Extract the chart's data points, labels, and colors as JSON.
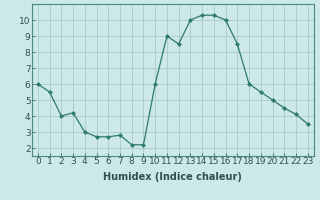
{
  "x": [
    0,
    1,
    2,
    3,
    4,
    5,
    6,
    7,
    8,
    9,
    10,
    11,
    12,
    13,
    14,
    15,
    16,
    17,
    18,
    19,
    20,
    21,
    22,
    23
  ],
  "y": [
    6.0,
    5.5,
    4.0,
    4.2,
    3.0,
    2.7,
    2.7,
    2.8,
    2.2,
    2.2,
    6.0,
    9.0,
    8.5,
    10.0,
    10.3,
    10.3,
    10.0,
    8.5,
    6.0,
    5.5,
    5.0,
    4.5,
    4.1,
    3.5
  ],
  "line_color": "#2d7a6e",
  "marker_color": "#2d7a6e",
  "bg_color": "#cce8e8",
  "grid_color": "#aacaca",
  "xlabel": "Humidex (Indice chaleur)",
  "xlabel_fontsize": 7,
  "ylim": [
    1.5,
    11.0
  ],
  "xlim": [
    -0.5,
    23.5
  ],
  "tick_fontsize": 6.5
}
